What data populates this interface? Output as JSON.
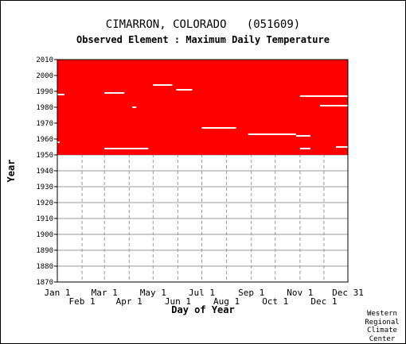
{
  "header": {
    "title": "CIMARRON, COLORADO   (051609)",
    "subtitle": "Observed Element : Maximum Daily Temperature"
  },
  "credit": [
    "Western",
    "Regional",
    "Climate",
    "Center"
  ],
  "colors": {
    "data": "#ff0000",
    "grid": "#999999",
    "axis": "#000000",
    "missing": "#ffffff"
  },
  "chart_data": {
    "type": "heatmap",
    "xlabel": "Day of Year",
    "ylabel": "Year",
    "ylim": [
      1870,
      2010
    ],
    "xlim_day_of_year": [
      1,
      365
    ],
    "y_ticks": [
      2010,
      2000,
      1990,
      1980,
      1970,
      1960,
      1950,
      1940,
      1930,
      1920,
      1910,
      1900,
      1890,
      1880,
      1870
    ],
    "x_ticks_top": [
      {
        "label": "Jan 1",
        "day": 1
      },
      {
        "label": "Mar 1",
        "day": 60
      },
      {
        "label": "May 1",
        "day": 121
      },
      {
        "label": "Jul 1",
        "day": 182
      },
      {
        "label": "Sep 1",
        "day": 244
      },
      {
        "label": "Nov 1",
        "day": 305
      },
      {
        "label": "Dec 31",
        "day": 365
      }
    ],
    "x_ticks_bottom": [
      {
        "label": "Feb 1",
        "day": 32
      },
      {
        "label": "Apr 1",
        "day": 91
      },
      {
        "label": "Jun 1",
        "day": 152
      },
      {
        "label": "Aug 1",
        "day": 213
      },
      {
        "label": "Oct 1",
        "day": 274
      },
      {
        "label": "Dec 1",
        "day": 335
      }
    ],
    "data_period": {
      "start_year": 1950,
      "end_year": 2010
    },
    "grid": true,
    "missing_segments": [
      {
        "year": 1988,
        "start_day": 1,
        "end_day": 10
      },
      {
        "year": 1989,
        "start_day": 60,
        "end_day": 85
      },
      {
        "year": 1994,
        "start_day": 121,
        "end_day": 145
      },
      {
        "year": 1991,
        "start_day": 150,
        "end_day": 170
      },
      {
        "year": 1987,
        "start_day": 305,
        "end_day": 365
      },
      {
        "year": 1981,
        "start_day": 330,
        "end_day": 365
      },
      {
        "year": 1980,
        "start_day": 95,
        "end_day": 100
      },
      {
        "year": 1967,
        "start_day": 182,
        "end_day": 225
      },
      {
        "year": 1963,
        "start_day": 240,
        "end_day": 300
      },
      {
        "year": 1962,
        "start_day": 300,
        "end_day": 318
      },
      {
        "year": 1954,
        "start_day": 60,
        "end_day": 115
      },
      {
        "year": 1954,
        "start_day": 305,
        "end_day": 318
      },
      {
        "year": 1955,
        "start_day": 350,
        "end_day": 365
      },
      {
        "year": 1958,
        "start_day": 1,
        "end_day": 4
      }
    ]
  }
}
